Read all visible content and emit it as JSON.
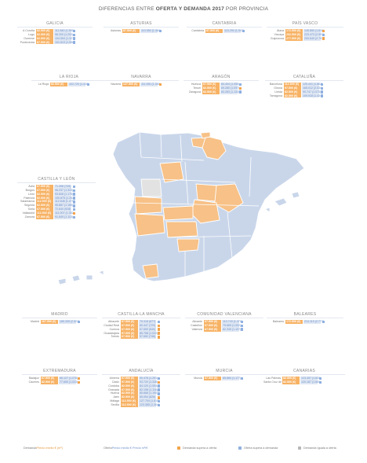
{
  "title": {
    "pre": "DIFERENCIAS ENTRE ",
    "bold": "OFERTA Y DEMANDA 2017",
    "post": " POR PROVINCIA"
  },
  "colors": {
    "demand": "#f7b264",
    "offer": "#dfe7f3",
    "map_offer": "#c9d6ea",
    "map_demand": "#f7c187",
    "map_equal": "#e2e2e2"
  },
  "regions": [
    {
      "name": "GALICIA",
      "rows": [
        {
          "prov": "A Coruña",
          "dem": "82.500 (€)",
          "off": "111.840 (1.595)",
          "icon": "offer"
        },
        {
          "prov": "Lugo",
          "dem": "82.500 (€)",
          "off": "96.200 (1.202)",
          "icon": "offer"
        },
        {
          "prov": "Ourense",
          "dem": "82.500 (€)",
          "off": "104.554 (1.327)",
          "icon": "offer"
        },
        {
          "prov": "Pontevedra",
          "dem": "87.500 (€)",
          "off": "101.613 (1.596)",
          "icon": "offer"
        }
      ]
    },
    {
      "name": "ASTURIAS",
      "rows": [
        {
          "prov": "Asturias",
          "dem": "87.500 (€)",
          "off": "110.950 (1.460)",
          "icon": "offer"
        }
      ]
    },
    {
      "name": "CANTABRIA",
      "rows": [
        {
          "prov": "Cantabria",
          "dem": "87.500 (€)",
          "off": "115.290 (1.547)",
          "icon": "offer"
        }
      ]
    },
    {
      "name": "PAÍS VASCO",
      "rows": [
        {
          "prov": "Álava",
          "dem": "172.500 (€)",
          "off": "145.850 (1.616)",
          "icon": "demand"
        },
        {
          "prov": "Vizcaya",
          "dem": "202.500 (€)",
          "off": "223.473 (2.593)",
          "icon": "offer"
        },
        {
          "prov": "Guipúzcoa",
          "dem": "277.500 (€)",
          "off": "253.649 (2.793)",
          "icon": "demand"
        }
      ]
    },
    {
      "name": "LA RIOJA",
      "rows": [
        {
          "prov": "La Rioja",
          "dem": "82.500 (€)",
          "off": "102.720 (1.416)",
          "icon": "offer"
        }
      ]
    },
    {
      "name": "NAVARRA",
      "rows": [
        {
          "prov": "Navarra",
          "dem": "127.500 (€)",
          "off": "111.050 (1.346)",
          "icon": "demand"
        }
      ]
    },
    {
      "name": "ARAGÓN",
      "rows": [
        {
          "prov": "Huesca",
          "dem": "67.500 (€)",
          "off": "84.404 (1.055)",
          "icon": "offer"
        },
        {
          "prov": "Teruel",
          "dem": "82.500 (€)",
          "off": "69.280 (1.097)",
          "icon": "demand"
        },
        {
          "prov": "Zaragoza",
          "dem": "82.500 (€)",
          "off": "83.283 (1.133)",
          "icon": "offer"
        }
      ]
    },
    {
      "name": "CATALUÑA",
      "rows": [
        {
          "prov": "Barcelona",
          "dem": "112.500 (€)",
          "off": "125.441 (1.862)",
          "icon": "offer"
        },
        {
          "prov": "Girona",
          "dem": "97.500 (€)",
          "off": "165.012 (2.034)",
          "icon": "offer"
        },
        {
          "prov": "Lleida",
          "dem": "82.500 (€)",
          "off": "90.747 (1.073)",
          "icon": "offer"
        },
        {
          "prov": "Tarragona",
          "dem": "82.500 (€)",
          "off": "109.918 (1.434)",
          "icon": "offer"
        }
      ]
    },
    {
      "name": "CASTILLA Y LEÓN",
      "rows": [
        {
          "prov": "Ávila",
          "dem": "67.500 (€)",
          "off": "71.398 (749)",
          "icon": "offer"
        },
        {
          "prov": "Burgos",
          "dem": "67.500 (€)",
          "off": "96.237 (1.323)",
          "icon": "offer"
        },
        {
          "prov": "León",
          "dem": "82.500 (€)",
          "off": "93.608 (1.175)",
          "icon": "offer"
        },
        {
          "prov": "Palencia",
          "dem": "82.500 (€)",
          "off": "100.875 (1.262)",
          "icon": "offer"
        },
        {
          "prov": "Salamanca",
          "dem": "112.500 (€)",
          "off": "112.646 (1.479)",
          "icon": "offer"
        },
        {
          "prov": "Segovia",
          "dem": "82.500 (€)",
          "off": "95.887 (1.165)",
          "icon": "offer"
        },
        {
          "prov": "Soria",
          "dem": "67.500 (€)",
          "off": "72.640 (928)",
          "icon": "offer"
        },
        {
          "prov": "Valladolid",
          "dem": "112.500 (€)",
          "off": "111.007 (1.352)",
          "icon": "demand"
        },
        {
          "prov": "Zamora",
          "dem": "67.500 (€)",
          "off": "91.849 (1.110)",
          "icon": "offer"
        }
      ]
    },
    {
      "name": "MADRID",
      "rows": [
        {
          "prov": "Madrid",
          "dem": "167.500 (€)",
          "off": "185.339 (2.523)",
          "icon": "offer"
        }
      ]
    },
    {
      "name": "CASTILLA-LA MANCHA",
      "rows": [
        {
          "prov": "Albacete",
          "dem": "67.500 (€)",
          "off": "79.318 (877)",
          "icon": "offer"
        },
        {
          "prov": "Ciudad Real",
          "dem": "67.500 (€)",
          "off": "60.447 (729)",
          "icon": "demand"
        },
        {
          "prov": "Cuenca",
          "dem": "67.500 (€)",
          "off": "57.659 (840)",
          "icon": "demand"
        },
        {
          "prov": "Guadalajara",
          "dem": "97.500 (€)",
          "off": "85.768 (1.022)",
          "icon": "demand"
        },
        {
          "prov": "Toledo",
          "dem": "67.500 (€)",
          "off": "57.652 (746)",
          "icon": "demand"
        }
      ]
    },
    {
      "name": "COMUNIDAD VALENCIANA",
      "rows": [
        {
          "prov": "Alicante",
          "dem": "67.500 (€)",
          "off": "110.743 (1.479)",
          "icon": "offer"
        },
        {
          "prov": "Castellón",
          "dem": "67.500 (€)",
          "off": "75.665 (1.002)",
          "icon": "offer"
        },
        {
          "prov": "Valencia",
          "dem": "67.500 (€)",
          "off": "82.335 (1.107)",
          "icon": "offer"
        }
      ]
    },
    {
      "name": "BALEARES",
      "rows": [
        {
          "prov": "Baleares",
          "dem": "172.500 (€)",
          "off": "214.119 (2.773)",
          "icon": "offer"
        }
      ]
    },
    {
      "name": "EXTREMADURA",
      "rows": [
        {
          "prov": "Badajoz",
          "dem": "67.500 (€)",
          "off": "66.127 (1.078)",
          "icon": "demand"
        },
        {
          "prov": "Cáceres",
          "dem": "82.500 (€)",
          "off": "77.650 (1.023)",
          "icon": "demand"
        }
      ]
    },
    {
      "name": "ANDALUCÍA",
      "rows": [
        {
          "prov": "Almería",
          "dem": "67.500 (€)",
          "off": "90.478 (1.251)",
          "icon": "offer"
        },
        {
          "prov": "Cádiz",
          "dem": "97.500 (€)",
          "off": "93.720 (1.338)",
          "icon": "demand"
        },
        {
          "prov": "Córdoba",
          "dem": "82.500 (€)",
          "off": "84.120 (1.094)",
          "icon": "offer"
        },
        {
          "prov": "Granada",
          "dem": "67.500 (€)",
          "off": "82.198 (1.118)",
          "icon": "offer"
        },
        {
          "prov": "Huelva",
          "dem": "82.500 (€)",
          "off": "85.668 (1.190)",
          "icon": "offer"
        },
        {
          "prov": "Jaén",
          "dem": "82.500 (€)",
          "off": "65.054 (826)",
          "icon": "demand"
        },
        {
          "prov": "Málaga",
          "dem": "112.500 (€)",
          "off": "127.704 (1.810)",
          "icon": "offer"
        },
        {
          "prov": "Sevilla",
          "dem": "112.500 (€)",
          "off": "123.385 (1.304)",
          "icon": "offer"
        }
      ]
    },
    {
      "name": "MURCIA",
      "rows": [
        {
          "prov": "Murcia",
          "dem": "67.500 (€)",
          "off": "85.860 (1.177)",
          "icon": "offer"
        }
      ]
    },
    {
      "name": "CANARIAS",
      "rows": [
        {
          "prov": "Las Palmas",
          "dem": "82.500 (€)",
          "off": "123.357 (1.635)",
          "icon": "offer"
        },
        {
          "prov": "Santa Cruz de T.",
          "dem": "82.500 (€)",
          "off": "120.187 (1.650)",
          "icon": "offer"
        }
      ]
    }
  ],
  "legend": {
    "demand_label_pre": "Demanda ",
    "demand_label_em": "Precio medio € (m²)",
    "offer_label_pre": "Oferta ",
    "offer_label_em": "Precio medio € Precio m²/€",
    "icon_demand": "Demanda supera a oferta",
    "icon_offer": "Oferta supera a demanda",
    "icon_equal": "Demanda Iguala a oferta"
  }
}
